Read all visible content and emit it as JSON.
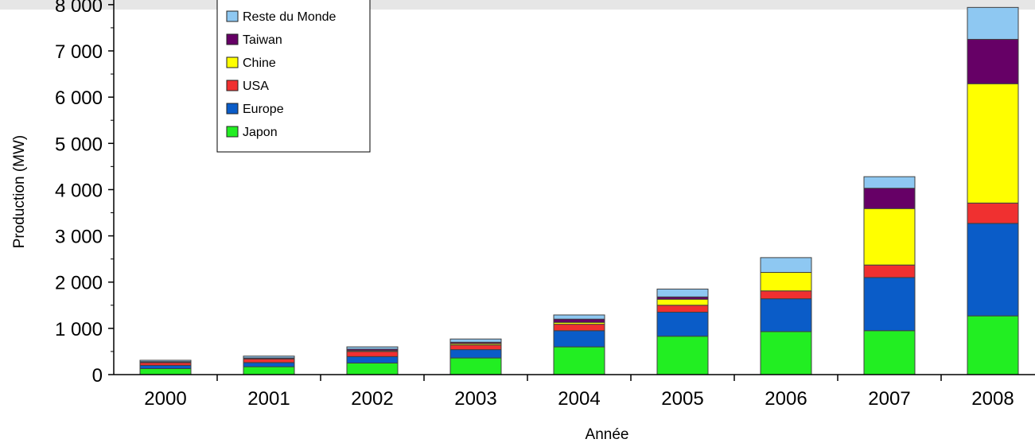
{
  "chart_data": {
    "type": "bar",
    "stacked": true,
    "title": "",
    "xlabel": "Année",
    "ylabel": "Production (MW)",
    "ylim": [
      0,
      8000
    ],
    "yticks": [
      0,
      1000,
      2000,
      3000,
      4000,
      5000,
      6000,
      7000,
      8000
    ],
    "ytick_labels": [
      "0",
      "1 000",
      "2 000",
      "3 000",
      "4 000",
      "5 000",
      "6 000",
      "7 000",
      "8 000"
    ],
    "categories": [
      "2000",
      "2001",
      "2002",
      "2003",
      "2004",
      "2005",
      "2006",
      "2007",
      "2008"
    ],
    "grid": false,
    "legend_position": "top-left",
    "series": [
      {
        "name": "Japon",
        "color": "#22ee22",
        "values": [
          130,
          170,
          250,
          360,
          600,
          830,
          930,
          950,
          1270
        ]
      },
      {
        "name": "Europe",
        "color": "#0a5cc8",
        "values": [
          70,
          90,
          140,
          180,
          350,
          520,
          710,
          1150,
          2000
        ]
      },
      {
        "name": "USA",
        "color": "#f03030",
        "values": [
          60,
          80,
          110,
          100,
          140,
          150,
          170,
          270,
          440
        ]
      },
      {
        "name": "Chine",
        "color": "#ffff00",
        "values": [
          0,
          0,
          20,
          30,
          40,
          130,
          400,
          1220,
          2580
        ]
      },
      {
        "name": "Taiwan",
        "color": "#660066",
        "values": [
          20,
          20,
          30,
          30,
          70,
          50,
          0,
          440,
          960
        ]
      },
      {
        "name": "Reste du Monde",
        "color": "#8ec8f2",
        "values": [
          30,
          40,
          50,
          70,
          90,
          170,
          320,
          250,
          690
        ]
      }
    ]
  }
}
